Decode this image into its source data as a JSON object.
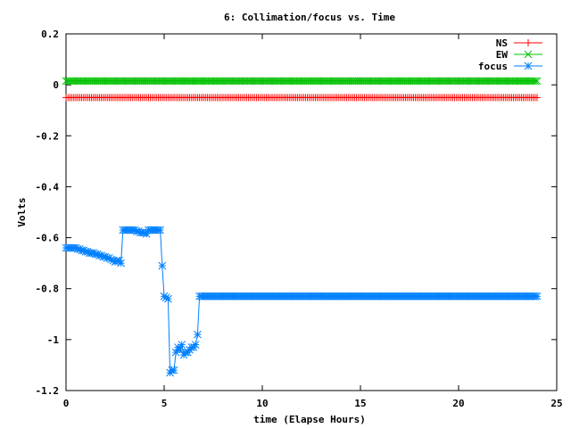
{
  "chart_data": {
    "type": "line",
    "title": "6: Collimation/focus vs. Time",
    "xlabel": "time (Elapse Hours)",
    "ylabel": "Volts",
    "xlim": [
      0,
      25
    ],
    "ylim": [
      -1.2,
      0.2
    ],
    "xticks": [
      0,
      5,
      10,
      15,
      20,
      25
    ],
    "xtick_labels": [
      "0",
      "5",
      "10",
      "15",
      "20",
      "25"
    ],
    "yticks": [
      -1.2,
      -1.0,
      -0.8,
      -0.6,
      -0.4,
      -0.2,
      0,
      0.2
    ],
    "ytick_labels": [
      "-1.2",
      "-1",
      "-0.8",
      "-0.6",
      "-0.4",
      "-0.2",
      "0",
      "0.2"
    ],
    "grid": false,
    "legend_position": "top-right",
    "series": [
      {
        "name": "NS",
        "color": "#ff0000",
        "marker": "plus",
        "x_start": 0.0,
        "x_end": 24.0,
        "x_step": 0.1,
        "constant_value": -0.05
      },
      {
        "name": "EW",
        "color": "#00c000",
        "marker": "cross",
        "x_start": 0.0,
        "x_end": 24.0,
        "x_step": 0.1,
        "constant_value": 0.015
      },
      {
        "name": "focus",
        "color": "#0080ff",
        "marker": "star",
        "x": [
          0.0,
          0.1,
          0.2,
          0.3,
          0.4,
          0.5,
          0.6,
          0.7,
          0.8,
          0.9,
          1.0,
          1.1,
          1.2,
          1.3,
          1.4,
          1.5,
          1.6,
          1.7,
          1.8,
          1.9,
          2.0,
          2.1,
          2.2,
          2.3,
          2.4,
          2.5,
          2.6,
          2.7,
          2.8,
          2.9,
          3.0,
          3.1,
          3.2,
          3.3,
          3.4,
          3.5,
          3.6,
          3.7,
          3.8,
          3.9,
          4.0,
          4.1,
          4.2,
          4.3,
          4.4,
          4.5,
          4.6,
          4.7,
          4.8,
          4.9,
          5.0,
          5.1,
          5.2,
          5.3,
          5.4,
          5.5,
          5.6,
          5.7,
          5.8,
          5.9,
          6.0,
          6.1,
          6.2,
          6.3,
          6.4,
          6.5,
          6.6,
          6.7,
          6.8,
          6.9
        ],
        "y": [
          -0.64,
          -0.64,
          -0.64,
          -0.64,
          -0.64,
          -0.64,
          -0.645,
          -0.645,
          -0.65,
          -0.65,
          -0.655,
          -0.655,
          -0.66,
          -0.66,
          -0.66,
          -0.665,
          -0.665,
          -0.67,
          -0.67,
          -0.675,
          -0.675,
          -0.68,
          -0.68,
          -0.685,
          -0.69,
          -0.695,
          -0.69,
          -0.69,
          -0.7,
          -0.57,
          -0.57,
          -0.57,
          -0.57,
          -0.57,
          -0.57,
          -0.57,
          -0.575,
          -0.575,
          -0.58,
          -0.58,
          -0.58,
          -0.585,
          -0.57,
          -0.57,
          -0.57,
          -0.57,
          -0.57,
          -0.57,
          -0.57,
          -0.71,
          -0.83,
          -0.835,
          -0.84,
          -1.13,
          -1.12,
          -1.12,
          -1.05,
          -1.03,
          -1.04,
          -1.02,
          -1.06,
          -1.05,
          -1.05,
          -1.04,
          -1.03,
          -1.03,
          -1.02,
          -0.98,
          -0.83,
          -0.83
        ],
        "continuation": {
          "x_start": 7.0,
          "x_end": 24.0,
          "x_step": 0.1,
          "constant_value": -0.83
        }
      }
    ]
  }
}
